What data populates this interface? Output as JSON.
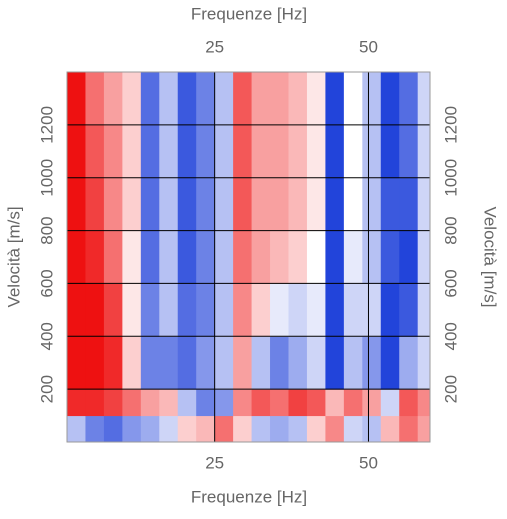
{
  "chart_data": {
    "type": "heatmap",
    "xlabel": "Frequenze [Hz]",
    "ylabel": "Velocità [m/s]",
    "xlim": [
      1,
      60
    ],
    "ylim": [
      0,
      1400
    ],
    "xticks": [
      25,
      50
    ],
    "yticks": [
      200,
      400,
      600,
      800,
      1000,
      1200
    ],
    "grid": true,
    "x_edges": [
      1,
      4,
      7,
      10,
      13,
      16,
      19,
      22,
      25,
      28,
      31,
      34,
      37,
      40,
      43,
      46,
      49,
      52,
      55,
      58,
      60
    ],
    "y_edges": [
      0,
      100,
      200,
      400,
      600,
      800,
      1000,
      1200,
      1400
    ],
    "zlim": [
      -1,
      1
    ],
    "colormap": [
      "#0a2fd6",
      "#ffffff",
      "#ee1111"
    ],
    "z": [
      [
        -0.3,
        -0.6,
        -0.7,
        -0.5,
        -0.4,
        -0.2,
        0.2,
        0.3,
        0.6,
        0.2,
        -0.3,
        -0.4,
        -0.3,
        0.2,
        0.5,
        -0.2,
        -0.3,
        0.3,
        0.6,
        0.4
      ],
      [
        0.9,
        0.9,
        0.8,
        0.6,
        0.4,
        0.3,
        -0.3,
        -0.6,
        -0.5,
        0.5,
        0.7,
        0.6,
        0.8,
        0.7,
        0.3,
        0.6,
        0.4,
        -0.2,
        0.7,
        0.5
      ],
      [
        1,
        1,
        0.9,
        0.2,
        -0.6,
        -0.6,
        -0.7,
        -0.5,
        -0.3,
        0.4,
        -0.3,
        -0.6,
        -0.4,
        -0.2,
        -0.9,
        -0.3,
        -0.5,
        -0.9,
        -0.4,
        -0.2
      ],
      [
        1,
        1,
        0.8,
        0.1,
        -0.6,
        -0.3,
        -0.7,
        -0.6,
        -0.3,
        0.5,
        0.2,
        -0.1,
        -0.2,
        -0.1,
        -0.9,
        -0.2,
        -0.2,
        -0.9,
        -0.8,
        -0.2
      ],
      [
        1,
        0.9,
        0.6,
        0.1,
        -0.7,
        -0.3,
        -0.8,
        -0.6,
        -0.3,
        0.6,
        0.4,
        0.3,
        0.2,
        0,
        -0.9,
        -0.1,
        -0.3,
        -0.8,
        -0.9,
        -0.2
      ],
      [
        1,
        0.8,
        0.5,
        0.2,
        -0.7,
        -0.3,
        -0.8,
        -0.6,
        -0.3,
        0.7,
        0.4,
        0.4,
        0.3,
        0.1,
        -0.9,
        0,
        -0.3,
        -0.8,
        -0.8,
        -0.2
      ],
      [
        1,
        0.7,
        0.5,
        0.2,
        -0.7,
        -0.3,
        -0.8,
        -0.6,
        -0.3,
        0.7,
        0.4,
        0.4,
        0.3,
        0.1,
        -0.9,
        0,
        -0.3,
        -0.9,
        -0.7,
        -0.2
      ],
      [
        1,
        0.6,
        0.4,
        0.2,
        -0.7,
        -0.3,
        -0.8,
        -0.6,
        -0.3,
        0.7,
        0.4,
        0.4,
        0.3,
        0.1,
        -0.9,
        0,
        -0.3,
        -0.9,
        -0.7,
        -0.2
      ]
    ]
  }
}
